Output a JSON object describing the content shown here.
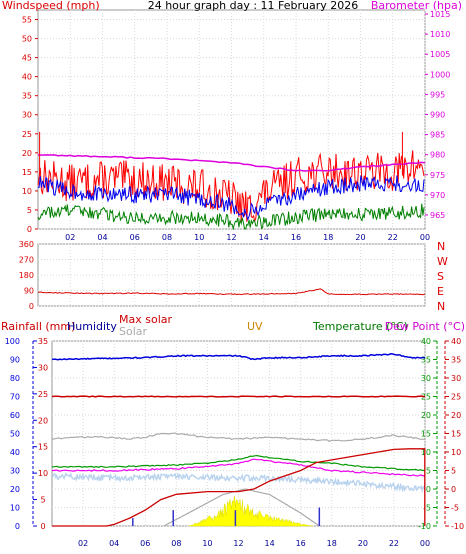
{
  "chart_data": [
    {
      "type": "line",
      "title": "24 hour graph day : 11 February 2026",
      "x_tick_labels": [
        "02",
        "04",
        "06",
        "08",
        "10",
        "12",
        "14",
        "16",
        "18",
        "20",
        "22",
        "00"
      ],
      "left_axis": {
        "label": "Windspeed (mph)",
        "color": "#dd0000",
        "range": [
          0,
          57.5
        ],
        "ticks": [
          0,
          5,
          10,
          15,
          20,
          25,
          30,
          35,
          40,
          45,
          50,
          55
        ]
      },
      "right_axis": {
        "label": "Barometer (hpa)",
        "color": "#dd00dd",
        "range": [
          961.5,
          1016
        ],
        "ticks": [
          965,
          970,
          975,
          980,
          985,
          990,
          995,
          1000,
          1005,
          1010,
          1015
        ]
      },
      "series": [
        {
          "name": "Windspeed (mph)",
          "color": "#ff0000",
          "axis": "left",
          "x": [
            0,
            2,
            4,
            6,
            8,
            10,
            12,
            13,
            14,
            16,
            18,
            20,
            22,
            24
          ],
          "y": [
            14,
            12,
            13,
            13,
            12,
            11,
            8,
            5,
            9,
            14,
            15,
            15,
            15,
            17
          ]
        },
        {
          "color": "#0000ee",
          "axis": "left",
          "x": [
            0,
            2,
            4,
            6,
            8,
            10,
            12,
            13,
            14,
            16,
            18,
            20,
            22,
            24
          ],
          "y": [
            12,
            10,
            9,
            9,
            9,
            8,
            6,
            4,
            6,
            9,
            11,
            12,
            12,
            11
          ]
        },
        {
          "color": "#008000",
          "axis": "left",
          "x": [
            0,
            2,
            4,
            6,
            8,
            10,
            12,
            13,
            14,
            16,
            18,
            20,
            22,
            24
          ],
          "y": [
            4,
            5,
            4,
            3,
            3,
            3,
            2,
            1,
            2,
            3,
            4,
            4,
            4,
            5
          ]
        },
        {
          "name": "Barometer (hpa)",
          "color": "#dd00dd",
          "axis": "right",
          "x": [
            0,
            4,
            8,
            12,
            14,
            16,
            18,
            20,
            22,
            24
          ],
          "y": [
            980,
            979.5,
            979,
            978,
            977,
            976,
            976,
            977,
            977.5,
            978
          ]
        }
      ]
    },
    {
      "type": "line",
      "x_tick_labels": [
        "02",
        "04",
        "06",
        "08",
        "10",
        "12",
        "14",
        "16",
        "18",
        "20",
        "22",
        "00"
      ],
      "left_axis": {
        "range": [
          0,
          360
        ],
        "ticks": [
          0,
          90,
          180,
          270,
          360
        ]
      },
      "direction_labels": [
        "N",
        "W",
        "S",
        "E",
        "N"
      ],
      "series": [
        {
          "color": "#dd0000",
          "x": [
            0,
            2,
            4,
            6,
            8,
            10,
            12,
            14,
            16,
            17.5,
            18,
            20,
            22,
            24
          ],
          "y": [
            80,
            75,
            72,
            75,
            70,
            72,
            68,
            70,
            72,
            100,
            70,
            68,
            70,
            68
          ]
        }
      ]
    },
    {
      "type": "line",
      "x_tick_labels": [
        "02",
        "04",
        "06",
        "08",
        "10",
        "12",
        "14",
        "16",
        "18",
        "20",
        "22",
        "00"
      ],
      "axis_titles": {
        "rainfall": "Rainfall (mm)",
        "humidity": "Humidity",
        "max_solar": "Max solar",
        "solar": "Solar",
        "uv": "UV",
        "temperature": "Temperature (°C)",
        "dew_point": "Dew Point (°C)"
      },
      "humidity_axis": {
        "range": [
          0,
          100
        ],
        "ticks": [
          0,
          10,
          20,
          30,
          40,
          50,
          60,
          70,
          80,
          90,
          100
        ]
      },
      "rain_axis": {
        "range": [
          0,
          35
        ],
        "ticks": [
          0,
          5,
          10,
          15,
          20,
          25,
          30,
          35
        ]
      },
      "temperature_axis": {
        "range": [
          -10,
          40
        ],
        "ticks": [
          -10,
          -5,
          0,
          5,
          10,
          15,
          20,
          25,
          30,
          35,
          40
        ]
      },
      "dewpoint_axis": {
        "range": [
          -10,
          40
        ],
        "ticks": [
          -10,
          -5,
          0,
          5,
          10,
          15,
          20,
          25,
          30,
          35,
          40
        ]
      },
      "colors": {
        "humidity": "#0000dd",
        "rainfall": "#cc0000",
        "temperature": "#009900",
        "dew_point": "#ee00ee",
        "max_solar": "#aaaaaa",
        "solar_fill": "#ffff00",
        "uv_bars": "#3333cc",
        "uv_axis": "#cc8800"
      },
      "series": [
        {
          "name": "Humidity",
          "axis": "humidity",
          "x": [
            0,
            6,
            8,
            10,
            12,
            13,
            14,
            16,
            18,
            20,
            22,
            23,
            24
          ],
          "y": [
            90,
            91,
            92,
            92,
            92,
            90,
            91,
            91,
            92,
            92,
            93,
            91,
            91
          ]
        },
        {
          "name": "Rainfall (mm)",
          "axis": "rain",
          "x": [
            0,
            12,
            24
          ],
          "y": [
            24.5,
            24.5,
            24.5
          ]
        },
        {
          "name": "Max solar",
          "axis": "humidity",
          "x": [
            0,
            2,
            4,
            5,
            6,
            7,
            8,
            10,
            12,
            14,
            16,
            18,
            20,
            22,
            23,
            24
          ],
          "y": [
            47,
            48,
            48,
            47,
            48,
            50,
            50,
            48,
            47,
            48,
            47,
            46,
            47,
            49,
            48,
            47
          ]
        },
        {
          "name": "Solar",
          "axis": "humidity",
          "x": [
            0,
            4,
            8,
            12,
            14,
            16,
            20,
            24
          ],
          "y": [
            27,
            26,
            27,
            26,
            26,
            25,
            23,
            20
          ]
        },
        {
          "name": "Temperature (°C)",
          "axis": "temperature",
          "x": [
            0,
            4,
            8,
            10,
            12,
            13,
            14,
            16,
            18,
            20,
            22,
            24
          ],
          "y": [
            6,
            6,
            6.5,
            7,
            8,
            9,
            8.5,
            7.5,
            7,
            6,
            5.5,
            5
          ]
        },
        {
          "name": "Dew Point (°C)",
          "axis": "dewpoint",
          "x": [
            0,
            4,
            8,
            10,
            12,
            13,
            14,
            16,
            18,
            20,
            22,
            24
          ],
          "y": [
            5,
            5,
            5.5,
            6,
            7,
            8,
            7.5,
            6.5,
            5,
            4.5,
            4,
            3.5
          ]
        },
        {
          "name": "Max solar",
          "axis": "humidity",
          "x": [
            7.2,
            9,
            11,
            12.4,
            14,
            16,
            17.2
          ],
          "y": [
            0,
            8,
            17,
            20,
            17,
            7,
            0
          ]
        },
        {
          "name": "Solar",
          "axis": "humidity",
          "x": [
            8.8,
            9.5,
            10.4,
            11,
            11.8,
            12.4,
            13,
            14,
            15,
            16,
            16.8
          ],
          "y": [
            0,
            2,
            5,
            8,
            12,
            10,
            7,
            4,
            3,
            1,
            0
          ]
        },
        {
          "name": "Rainfall (mm)",
          "axis": "rain",
          "x": [
            0,
            3.5,
            4,
            5,
            6,
            7,
            8,
            10,
            12,
            13,
            14,
            16,
            17,
            18,
            20,
            22,
            23,
            24
          ],
          "y": [
            0,
            0,
            0.3,
            1.5,
            3,
            5,
            6,
            6.5,
            6.5,
            7,
            8.5,
            10.5,
            12,
            12.5,
            13.5,
            14.5,
            14.6,
            0
          ]
        },
        {
          "name": "UV",
          "type": "bars",
          "x": [
            5.2,
            7.8,
            11.8,
            17.2
          ],
          "y": [
            1.5,
            3,
            3,
            3.5
          ]
        }
      ]
    }
  ]
}
